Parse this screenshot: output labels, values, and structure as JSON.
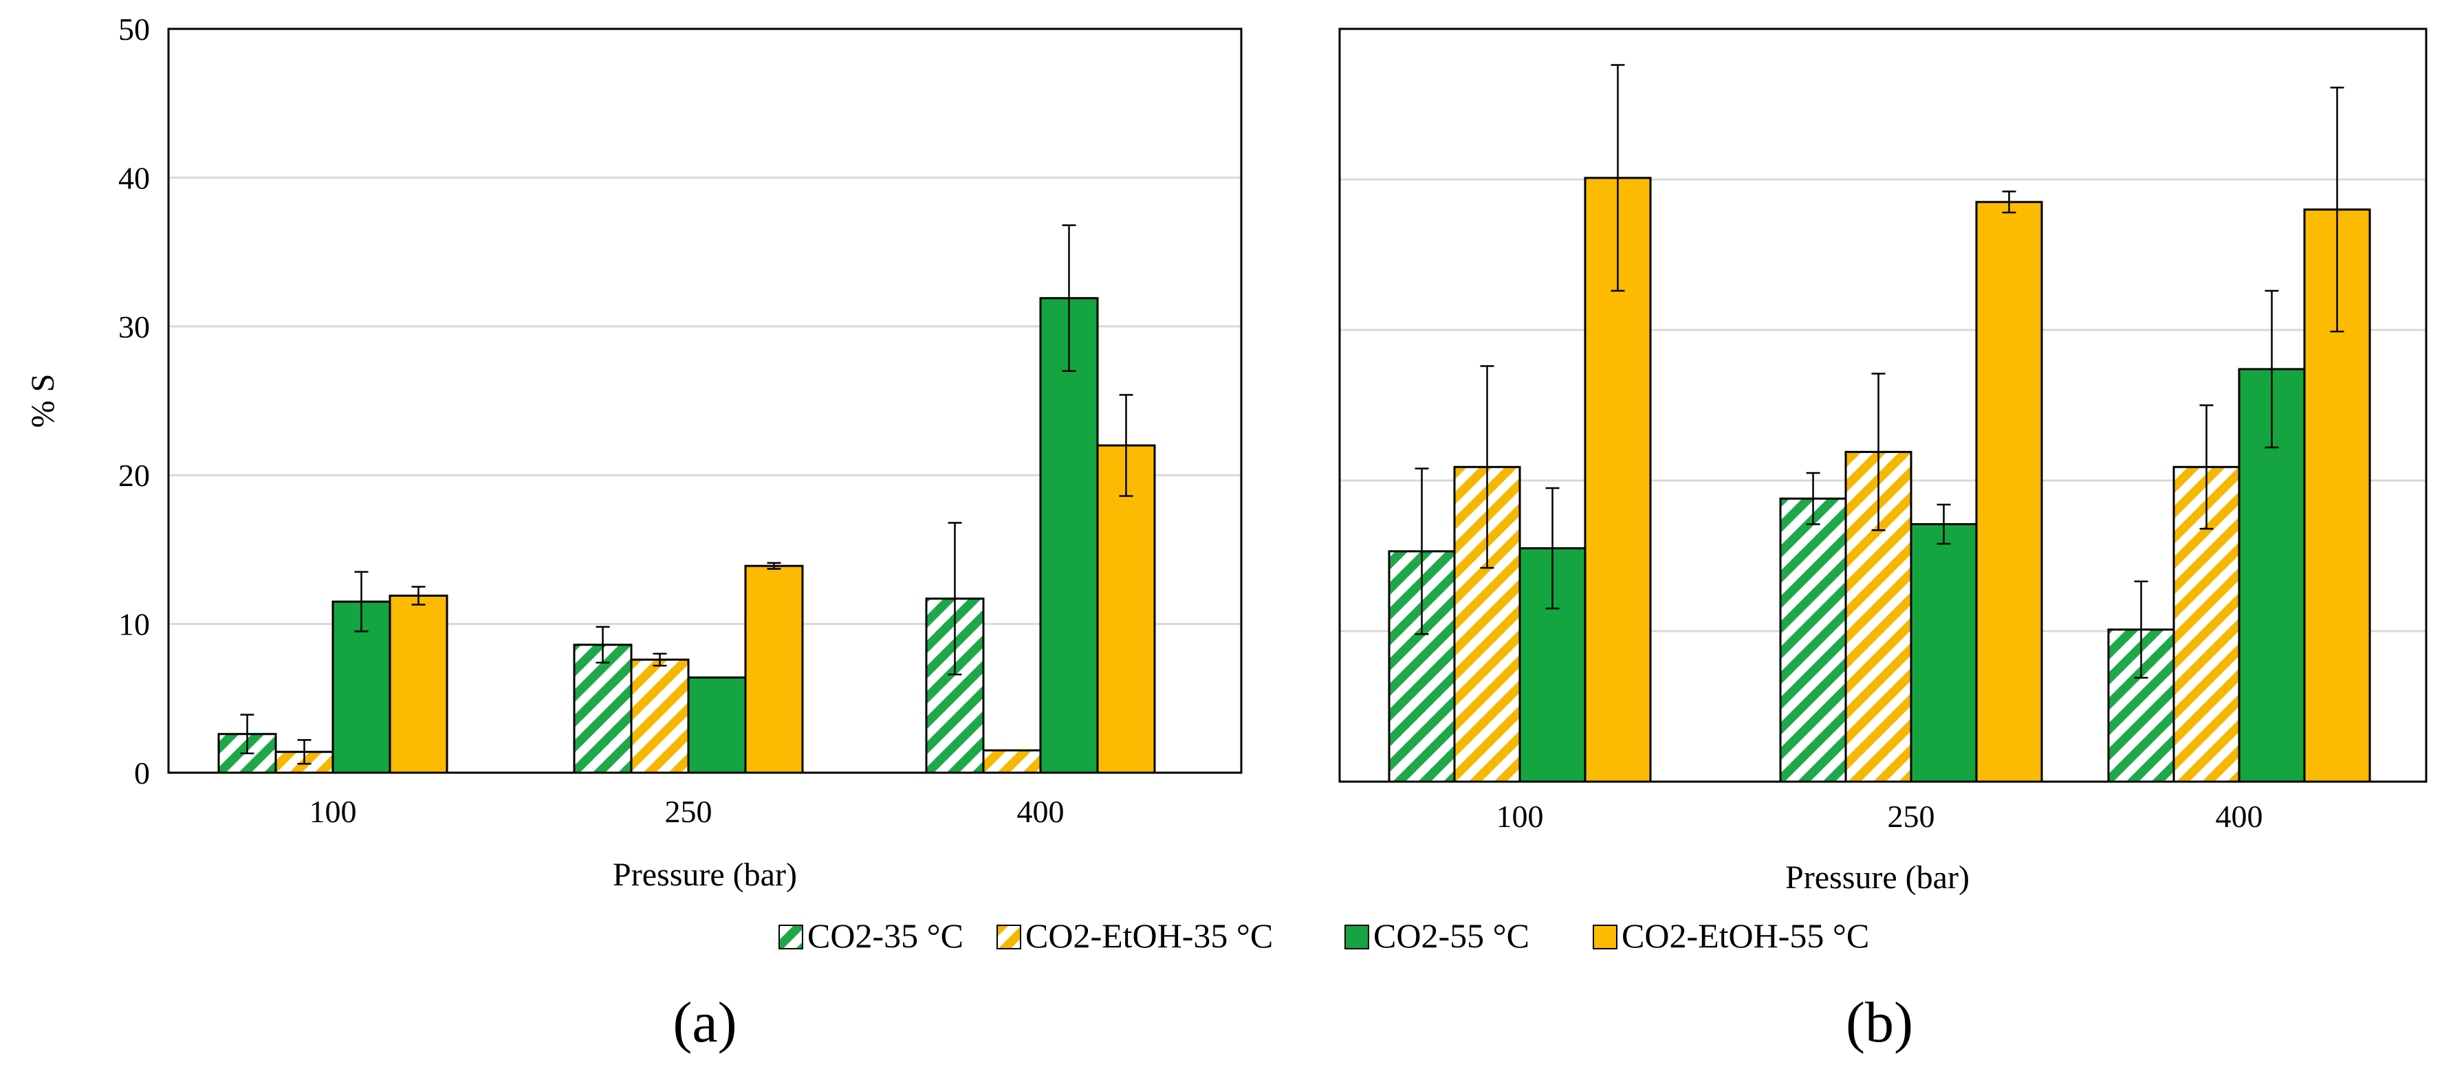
{
  "legend": {
    "entries": [
      {
        "name": "CO2-35 °C",
        "color": "#1fa84a",
        "pattern": "hatched"
      },
      {
        "name": "CO2-EtOH-35 °C",
        "color": "#f5b700",
        "pattern": "hatched"
      },
      {
        "name": "CO2-55 °C",
        "color": "#14a541",
        "pattern": "solid"
      },
      {
        "name": "CO2-EtOH-55 °C",
        "color": "#fcbb00",
        "pattern": "solid"
      }
    ]
  },
  "chart_data": [
    {
      "type": "bar",
      "panel_label": "(a)",
      "title": "",
      "xlabel": "Pressure (bar)",
      "ylabel": "% S",
      "ylim": [
        0,
        50
      ],
      "yticks": [
        "0",
        "10",
        "20",
        "30",
        "40",
        "50"
      ],
      "categories": [
        "100",
        "250",
        "400"
      ],
      "grid": true,
      "series": [
        {
          "name": "CO2-35 °C",
          "values": [
            2.6,
            8.6,
            11.7
          ],
          "errors": [
            1.3,
            1.2,
            5.1
          ]
        },
        {
          "name": "CO2-EtOH-35 °C",
          "values": [
            1.4,
            7.6,
            1.5
          ],
          "errors": [
            0.8,
            0.4,
            0.0
          ]
        },
        {
          "name": "CO2-55 °C",
          "values": [
            11.5,
            6.4,
            31.9
          ],
          "errors": [
            2.0,
            0.0,
            4.9
          ]
        },
        {
          "name": "CO2-EtOH-55 °C",
          "values": [
            11.9,
            13.9,
            22.0
          ],
          "errors": [
            0.6,
            0.2,
            3.4
          ]
        }
      ]
    },
    {
      "type": "bar",
      "panel_label": "(b)",
      "title": "",
      "xlabel": "Pressure (bar)",
      "ylabel": "",
      "ylim": [
        0,
        50
      ],
      "yticks": [],
      "categories": [
        "100",
        "250",
        "400"
      ],
      "grid": true,
      "series": [
        {
          "name": "CO2-35 °C",
          "values": [
            15.3,
            18.8,
            10.1
          ],
          "errors": [
            5.5,
            1.7,
            3.2
          ]
        },
        {
          "name": "CO2-EtOH-35 °C",
          "values": [
            20.9,
            21.9,
            20.9
          ],
          "errors": [
            6.7,
            5.2,
            4.1
          ]
        },
        {
          "name": "CO2-55 °C",
          "values": [
            15.5,
            17.1,
            27.4
          ],
          "errors": [
            4.0,
            1.3,
            5.2
          ]
        },
        {
          "name": "CO2-EtOH-55 °C",
          "values": [
            40.1,
            38.5,
            38.0
          ],
          "errors": [
            7.5,
            0.7,
            8.1
          ]
        }
      ]
    }
  ]
}
